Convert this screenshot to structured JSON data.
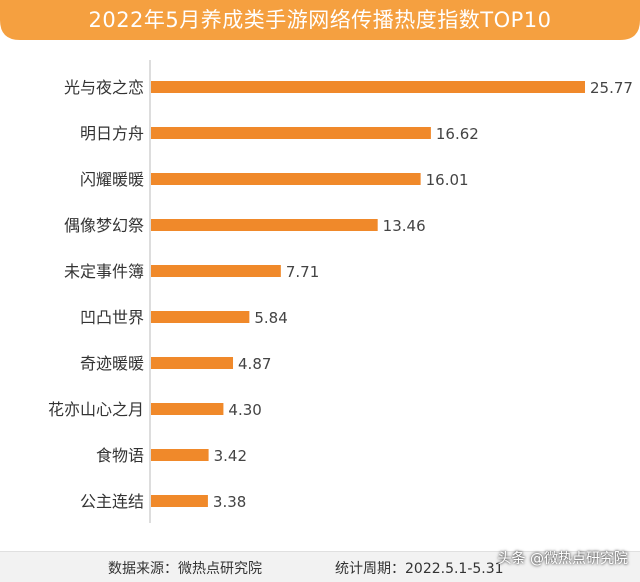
{
  "title": "2022年5月养成类手游网络传播热度指数TOP10",
  "colors": {
    "banner": "#f5a040",
    "bar": "#f0892a",
    "label": "#333333",
    "value": "#444444"
  },
  "chart_data": {
    "type": "bar",
    "orientation": "horizontal",
    "categories": [
      "光与夜之恋",
      "明日方舟",
      "闪耀暖暖",
      "偶像梦幻祭",
      "未定事件簿",
      "凹凸世界",
      "奇迹暖暖",
      "花亦山心之月",
      "食物语",
      "公主连结"
    ],
    "values": [
      25.77,
      16.62,
      16.01,
      13.46,
      7.71,
      5.84,
      4.87,
      4.3,
      3.42,
      3.38
    ],
    "value_labels": [
      "25.77",
      "16.62",
      "16.01",
      "13.46",
      "7.71",
      "5.84",
      "4.87",
      "4.30",
      "3.42",
      "3.38"
    ],
    "xlim": [
      0,
      25.77
    ],
    "grid": false,
    "legend": "none"
  },
  "footer": {
    "source": "数据来源：微热点研究院",
    "period": "统计周期：2022.5.1-5.31"
  },
  "watermark": "头条 @微热点研究院"
}
